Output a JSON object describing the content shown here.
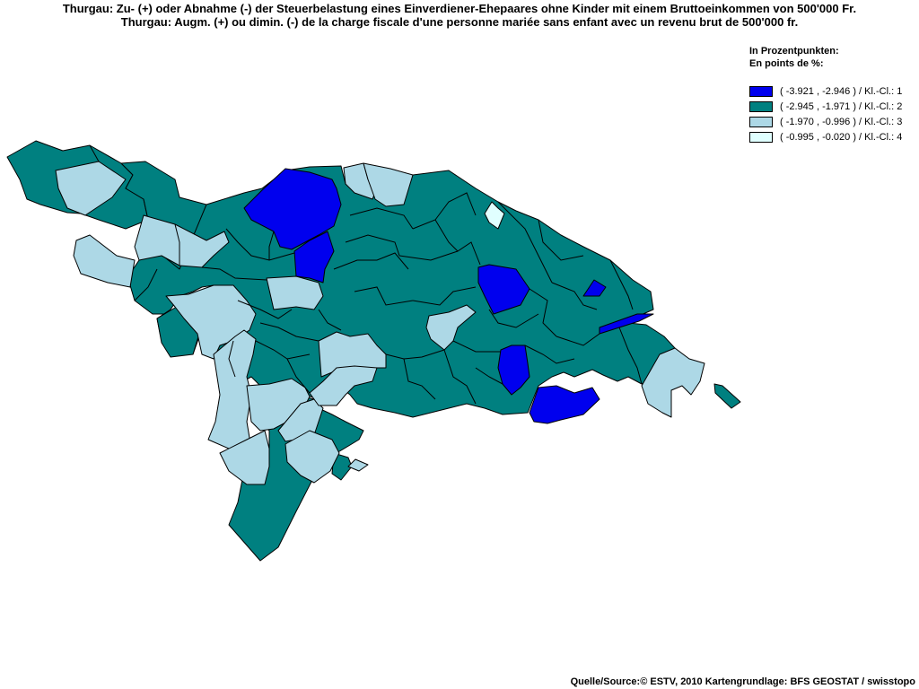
{
  "title": {
    "line1": "Thurgau: Zu- (+) oder Abnahme (-) der Steuerbelastung eines Einverdiener-Ehepaares ohne Kinder mit einem Bruttoeinkommen von 500'000 Fr.",
    "line2": "Thurgau: Augm. (+) ou dimin. (-) de la charge fiscale d'une personne mariée sans enfant avec un revenu brut de 500'000 fr."
  },
  "legend": {
    "heading_de": "In Prozentpunkten:",
    "heading_fr": "En points de %:",
    "classes": [
      {
        "label": "( -3.921 , -2.946 ) / Kl.-Cl.: 1",
        "color": "#0000ee"
      },
      {
        "label": "( -2.945 , -1.971 ) / Kl.-Cl.: 2",
        "color": "#008080"
      },
      {
        "label": "( -1.970 , -0.996 ) / Kl.-Cl.: 3",
        "color": "#add8e6"
      },
      {
        "label": "( -0.995 , -0.020 ) / Kl.-Cl.: 4",
        "color": "#e0ffff"
      }
    ]
  },
  "source": "Quelle/Source:© ESTV, 2010 Kartengrundlage: BFS GEOSTAT / swisstopo"
}
